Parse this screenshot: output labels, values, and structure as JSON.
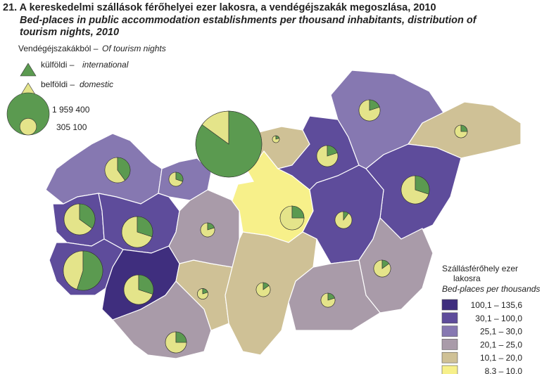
{
  "title": "21. A kereskedelmi szállások férőhelyei ezer lakosra, a vendégéjszakák megoszlása, 2010",
  "subtitle_lines": [
    "Bed-places in public accommodation establishments per thousand inhabitants, distribution of",
    "tourism nights, 2010"
  ],
  "pie_legend": {
    "title_hu": "Vendégéjszakákból –",
    "title_en": "Of tourism nights",
    "items": [
      {
        "hu": "külföldi –",
        "en": "international",
        "color": "#5b9a50"
      },
      {
        "hu": "belföldi –",
        "en": "domestic",
        "color": "#e4e48a"
      }
    ],
    "sizes": [
      {
        "value": 1959400,
        "label": "1 959 400"
      },
      {
        "value": 305100,
        "label": "305 100"
      }
    ]
  },
  "class_legend": {
    "title_hu_lines": [
      "Szállásférőhely ezer",
      "lakosra"
    ],
    "title_en": "Bed-places per thousands",
    "classes": [
      {
        "label": "100,1 – 135,6",
        "color": "#3f2e7e"
      },
      {
        "label": "30,1 – 100,0",
        "color": "#5e4c9b"
      },
      {
        "label": "25,1 –   30,0",
        "color": "#8678b1"
      },
      {
        "label": "20,1 –   25,0",
        "color": "#a99ba9"
      },
      {
        "label": "10,1 –   20,0",
        "color": "#cfc196"
      },
      {
        "label": "8,3 –   10,0",
        "color": "#f7f08a"
      }
    ]
  },
  "counties": [
    {
      "class": 2,
      "international": 40,
      "domestic": 60,
      "nights": 705000
    },
    {
      "class": 2,
      "international": 30,
      "domestic": 70,
      "nights": 218000
    },
    {
      "class": 1,
      "international": 35,
      "domestic": 65,
      "nights": 1054000
    },
    {
      "class": 1,
      "international": 30,
      "domestic": 70,
      "nights": 1054000
    },
    {
      "class": 1,
      "international": 55,
      "domestic": 45,
      "nights": 1707000
    },
    {
      "class": 0,
      "international": 30,
      "domestic": 70,
      "nights": 960000
    },
    {
      "class": 3,
      "international": 25,
      "domestic": 75,
      "nights": 490000
    },
    {
      "class": 4,
      "international": 20,
      "domestic": 80,
      "nights": 125000
    },
    {
      "class": 3,
      "international": 20,
      "domestic": 80,
      "nights": 218000
    },
    {
      "class": 1,
      "international": 85,
      "domestic": 15,
      "nights": 4800000
    },
    {
      "class": 5,
      "international": 25,
      "domestic": 75,
      "nights": 629000
    },
    {
      "class": 4,
      "international": 20,
      "domestic": 80,
      "nights": 54000
    },
    {
      "class": 1,
      "international": 20,
      "domestic": 80,
      "nights": 490000
    },
    {
      "class": 2,
      "international": 20,
      "domestic": 80,
      "nights": 490000
    },
    {
      "class": 4,
      "international": 25,
      "domestic": 75,
      "nights": 176000
    },
    {
      "class": 1,
      "international": 30,
      "domestic": 70,
      "nights": 871000
    },
    {
      "class": 1,
      "international": 10,
      "domestic": 90,
      "nights": 314000
    },
    {
      "class": 3,
      "international": 15,
      "domestic": 85,
      "nights": 314000
    },
    {
      "class": 4,
      "international": 15,
      "domestic": 85,
      "nights": 218000
    },
    {
      "class": 3,
      "international": 20,
      "domestic": 80,
      "nights": 218000
    }
  ]
}
